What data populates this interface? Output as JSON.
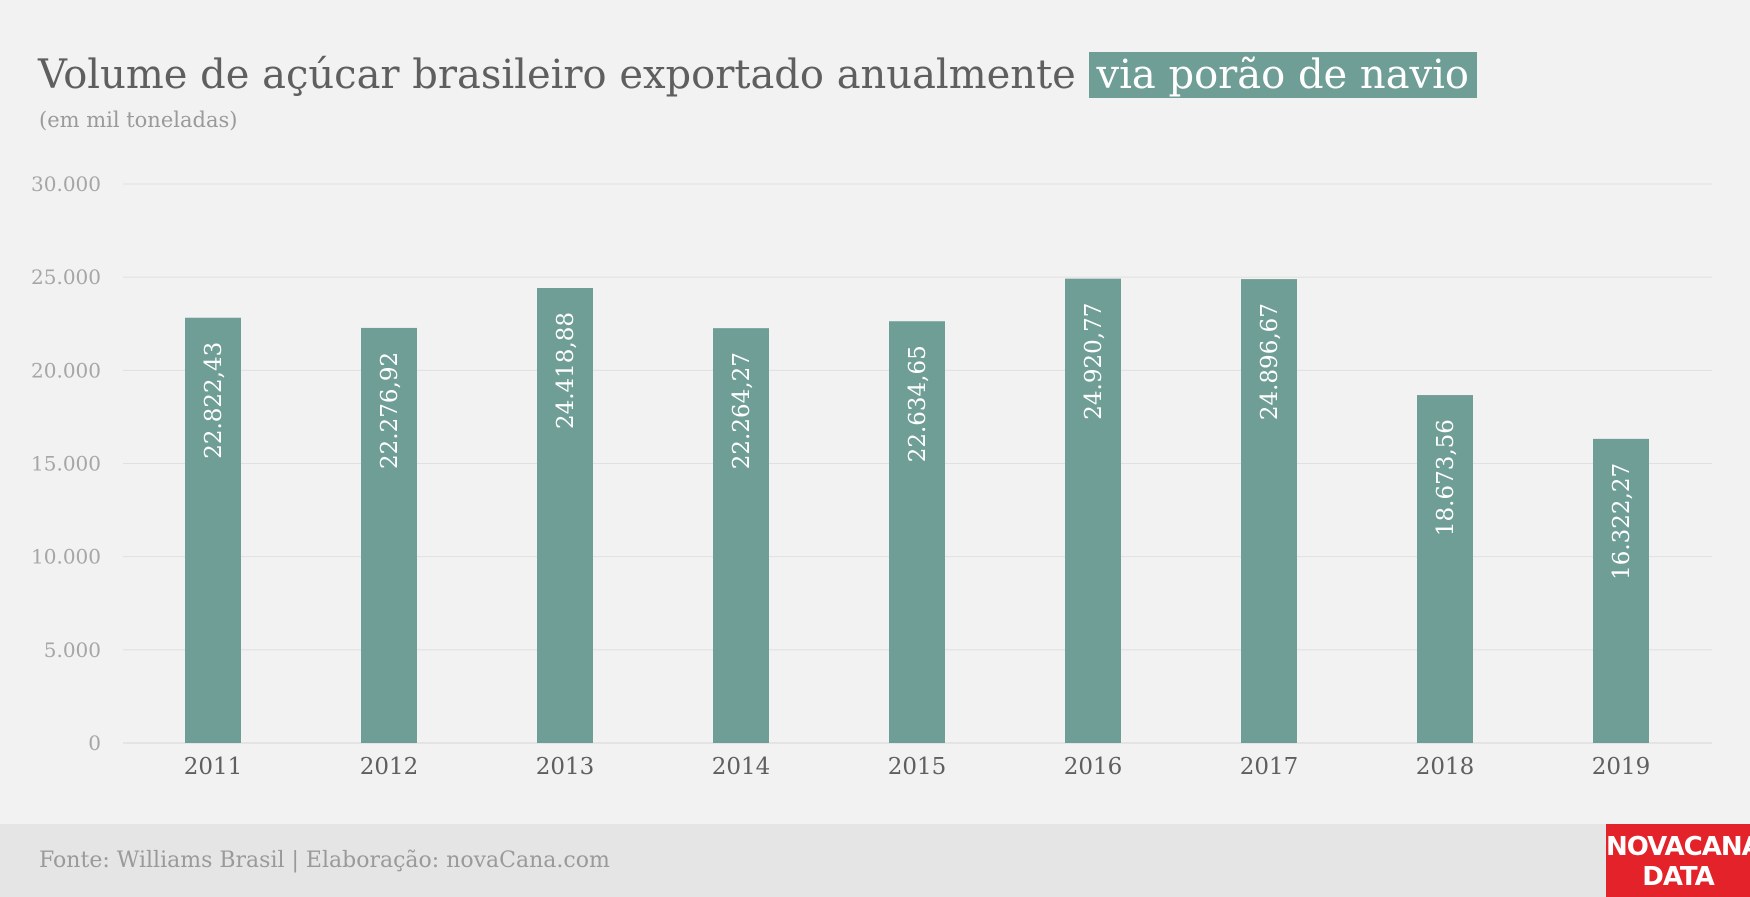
{
  "chart_data": {
    "type": "bar",
    "title_main": "Volume de açúcar brasileiro exportado anualmente",
    "title_highlight": "via porão de navio",
    "subtitle": "(em mil toneladas)",
    "categories": [
      "2011",
      "2012",
      "2013",
      "2014",
      "2015",
      "2016",
      "2017",
      "2018",
      "2019"
    ],
    "values": [
      22822.43,
      22276.92,
      24418.88,
      22264.27,
      22634.65,
      24920.77,
      24896.67,
      18673.56,
      16322.27
    ],
    "data_labels": [
      "22.822,43",
      "22.276,92",
      "24.418,88",
      "22.264,27",
      "22.634,65",
      "24.920,77",
      "24.896,67",
      "18.673,56",
      "16.322,27"
    ],
    "y_ticks": [
      0,
      5000,
      10000,
      15000,
      20000,
      25000,
      30000
    ],
    "y_tick_labels": [
      "0",
      "5.000",
      "10.000",
      "15.000",
      "20.000",
      "25.000",
      "30.000"
    ],
    "ylim": [
      0,
      30000
    ],
    "grid": true,
    "legend": "none",
    "bar_color": "#6f9e96"
  },
  "footer": {
    "source": "Fonte: Williams Brasil | Elaboração: novaCana.com",
    "logo_line1": "NOVACANA",
    "logo_line2": "DATA",
    "logo_color": "#e32229"
  }
}
